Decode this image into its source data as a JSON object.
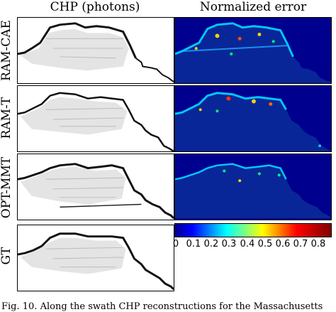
{
  "figure": {
    "col_titles": [
      "CHP (photons)",
      "Normalized error"
    ],
    "rows": [
      {
        "label": "RAM-CAE"
      },
      {
        "label": "RAM-T"
      },
      {
        "label": "OPT-MMT"
      },
      {
        "label": "GT"
      }
    ],
    "colorbar": {
      "colormap": "jet",
      "ticks": [
        "0",
        "0.1",
        "0.2",
        "0.3",
        "0.4",
        "0.5",
        "0.6",
        "0.7",
        "0.8"
      ],
      "range": [
        0,
        0.87
      ]
    },
    "caption_fragment": "Fig. 10.   Along the swath CHP reconstructions for the Massachusetts"
  }
}
